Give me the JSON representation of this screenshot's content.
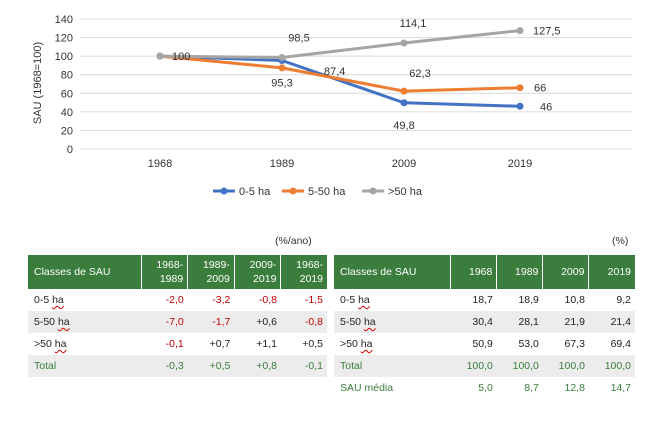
{
  "chart_data": {
    "type": "line",
    "x": [
      "1968",
      "1989",
      "2009",
      "2019"
    ],
    "ylabel": "SAU (1968=100)",
    "ylim": [
      0,
      140
    ],
    "yticks": [
      "0",
      "20",
      "40",
      "60",
      "80",
      "100",
      "120",
      "140"
    ],
    "grid": true,
    "legend_position": "bottom",
    "series": [
      {
        "name": "0-5 ha",
        "values": [
          100,
          95.3,
          49.8,
          46
        ],
        "labels": [
          "",
          "95,3",
          "49,8",
          "46"
        ],
        "color": "#4472c4"
      },
      {
        "name": "5-50 ha",
        "values": [
          100,
          87.4,
          62.3,
          66
        ],
        "labels": [
          "",
          "87,4",
          "62,3",
          "66"
        ],
        "color": "#ed7d31"
      },
      {
        "name": ">50 ha",
        "values": [
          100,
          98.5,
          114.1,
          127.5
        ],
        "labels": [
          "100",
          "98,5",
          "114,1",
          "127,5"
        ],
        "color": "#a5a5a5"
      }
    ]
  },
  "tables": {
    "left": {
      "unit": "(%/ano)",
      "headers": [
        "Classes de SAU",
        "1968-\n1989",
        "1989-\n2009",
        "2009-\n2019",
        "1968-\n2019"
      ],
      "rows": [
        {
          "label": "0-5 ha",
          "values": [
            "-2,0",
            "-3,2",
            "-0,8",
            "-1,5"
          ]
        },
        {
          "label": "5-50 ha",
          "values": [
            "-7,0",
            "-1,7",
            "+0,6",
            "-0,8"
          ]
        },
        {
          "label": ">50 ha",
          "values": [
            "-0,1",
            "+0,7",
            "+1,1",
            "+0,5"
          ]
        },
        {
          "label": "Total",
          "values": [
            "-0,3",
            "+0,5",
            "+0,8",
            "-0,1"
          ]
        }
      ]
    },
    "right": {
      "unit": "(%)",
      "headers": [
        "Classes de SAU",
        "1968",
        "1989",
        "2009",
        "2019"
      ],
      "rows": [
        {
          "label": "0-5 ha",
          "values": [
            "18,7",
            "18,9",
            "10,8",
            "9,2"
          ]
        },
        {
          "label": "5-50 ha",
          "values": [
            "30,4",
            "28,1",
            "21,9",
            "21,4"
          ]
        },
        {
          "label": ">50 ha",
          "values": [
            "50,9",
            "53,0",
            "67,3",
            "69,4"
          ]
        },
        {
          "label": "Total",
          "values": [
            "100,0",
            "100,0",
            "100,0",
            "100,0"
          ]
        },
        {
          "label": "SAU média",
          "values": [
            "5,0",
            "8,7",
            "12,8",
            "14,7"
          ]
        }
      ]
    }
  }
}
